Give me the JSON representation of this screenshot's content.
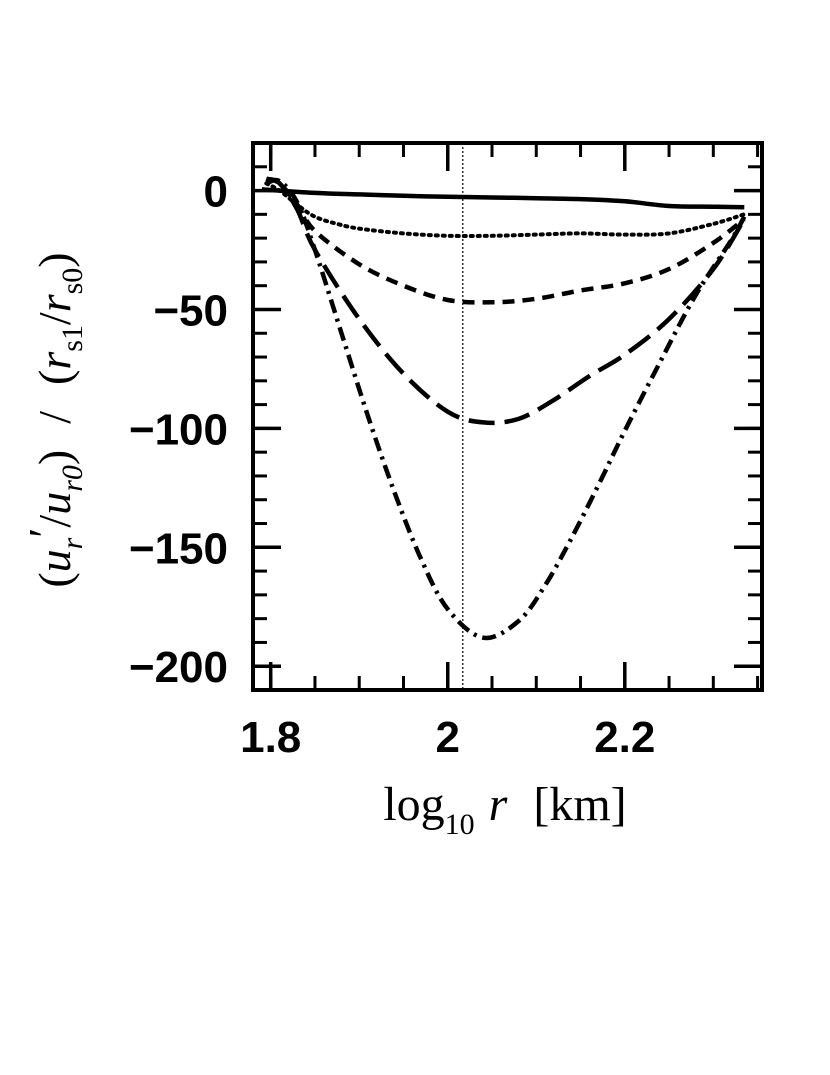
{
  "chart_data": {
    "type": "line",
    "title": "",
    "xlabel": {
      "main": "log",
      "sub": "10",
      "var": "r",
      "unit": "[km]"
    },
    "ylabel": {
      "open": "(",
      "u1": "u",
      "u1_sub": "r",
      "prime": "′",
      "slash1": "/",
      "u2": "u",
      "u2_sub": "r0",
      "close1": ")",
      "slash_mid": "/",
      "open2": "(",
      "r1": "r",
      "r1_sub": "s1",
      "slash2": "/",
      "r2": "r",
      "r2_sub": "s0",
      "close2": ")"
    },
    "xlim": [
      1.78,
      2.355
    ],
    "ylim": [
      -210,
      20
    ],
    "x_ticks": [
      {
        "value": 1.8,
        "label": "1.8"
      },
      {
        "value": 2.0,
        "label": "2"
      },
      {
        "value": 2.2,
        "label": "2.2"
      }
    ],
    "y_ticks": [
      {
        "value": 0,
        "label": "0"
      },
      {
        "value": -50,
        "label": "−50"
      },
      {
        "value": -100,
        "label": "−100"
      },
      {
        "value": -150,
        "label": "−150"
      },
      {
        "value": -200,
        "label": "−200"
      }
    ],
    "reference_line_x": 2.017,
    "grid": false,
    "legend": "none",
    "series": [
      {
        "style": "solid",
        "x": [
          1.79,
          1.85,
          1.9,
          1.95,
          2.0,
          2.05,
          2.1,
          2.15,
          2.2,
          2.25,
          2.3,
          2.335
        ],
        "y": [
          0.5,
          -1.0,
          -1.6,
          -2.2,
          -2.6,
          -2.9,
          -3.2,
          -3.6,
          -4.5,
          -6.5,
          -6.8,
          -7.0
        ]
      },
      {
        "style": "dotted",
        "x": [
          1.795,
          1.81,
          1.83,
          1.85,
          1.875,
          1.9,
          1.95,
          2.0,
          2.05,
          2.1,
          2.15,
          2.2,
          2.25,
          2.3,
          2.335
        ],
        "y": [
          3.0,
          0.0,
          -6.0,
          -11.0,
          -14.0,
          -16.0,
          -18.0,
          -19.0,
          -19.0,
          -18.5,
          -18.0,
          -18.5,
          -18.0,
          -14.0,
          -10.0
        ]
      },
      {
        "style": "dashed",
        "x": [
          1.795,
          1.81,
          1.83,
          1.85,
          1.9,
          1.95,
          2.0,
          2.05,
          2.1,
          2.15,
          2.2,
          2.25,
          2.3,
          2.335
        ],
        "y": [
          5.0,
          3.0,
          -6.0,
          -17.0,
          -31.0,
          -40.0,
          -46.0,
          -47.0,
          -45.5,
          -42.0,
          -39.0,
          -33.0,
          -22.0,
          -12.0
        ]
      },
      {
        "style": "long-dash",
        "x": [
          1.795,
          1.81,
          1.83,
          1.85,
          1.9,
          1.95,
          2.0,
          2.04,
          2.08,
          2.12,
          2.16,
          2.2,
          2.25,
          2.3,
          2.335
        ],
        "y": [
          5.0,
          3.0,
          -8.0,
          -25.0,
          -54.0,
          -77.0,
          -93.0,
          -97.5,
          -96.0,
          -88.0,
          -78.0,
          -69.0,
          -54.0,
          -33.0,
          -12.0
        ]
      },
      {
        "style": "dash-dot",
        "x": [
          1.795,
          1.81,
          1.83,
          1.85,
          1.88,
          1.91,
          1.94,
          1.97,
          2.0,
          2.04,
          2.08,
          2.11,
          2.14,
          2.17,
          2.2,
          2.24,
          2.28,
          2.32,
          2.335
        ],
        "y": [
          3.0,
          4.0,
          -5.0,
          -25.0,
          -60.0,
          -95.0,
          -127.0,
          -155.0,
          -176.0,
          -188.0,
          -181.0,
          -166.0,
          -146.0,
          -124.0,
          -101.0,
          -72.0,
          -44.0,
          -21.0,
          -11.0
        ]
      }
    ]
  }
}
